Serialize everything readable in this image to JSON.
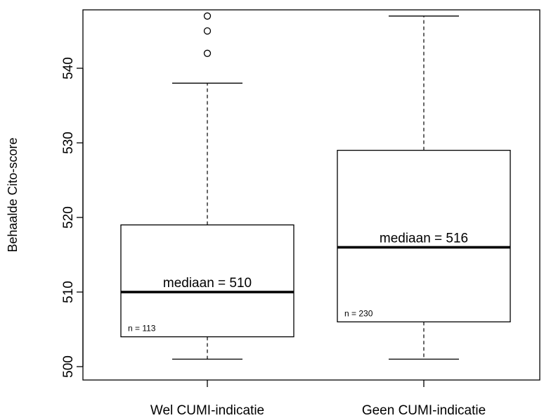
{
  "chart_data": {
    "type": "boxplot",
    "title": "",
    "xlabel": "",
    "ylabel": "Behaalde Cito-score",
    "ylim": [
      500,
      547
    ],
    "yticks": [
      500,
      510,
      520,
      530,
      540
    ],
    "ytick_labels": [
      "500",
      "510",
      "520",
      "530",
      "540"
    ],
    "categories": [
      "Wel CUMI-indicatie",
      "Geen CUMI-indicatie"
    ],
    "boxes": [
      {
        "category": "Wel CUMI-indicatie",
        "whisker_low": 501,
        "q1": 504,
        "median": 510,
        "q3": 519,
        "whisker_high": 538,
        "outliers": [
          542,
          545,
          547
        ],
        "median_label": "mediaan =  510",
        "n_label": "n =  113"
      },
      {
        "category": "Geen CUMI-indicatie",
        "whisker_low": 501,
        "q1": 506,
        "median": 516,
        "q3": 529,
        "whisker_high": 547,
        "outliers": [],
        "median_label": "mediaan =  516",
        "n_label": "n =  230"
      }
    ],
    "grid": false,
    "legend": "none"
  }
}
